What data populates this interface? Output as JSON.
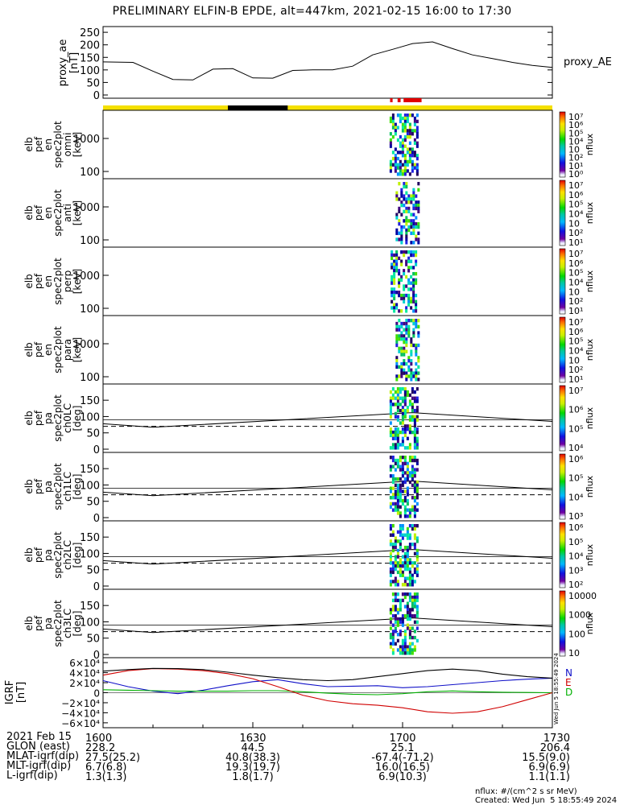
{
  "title": "PRELIMINARY ELFIN-B EPDE, alt=447km, 2021-02-15 16:00 to 17:30",
  "colors": {
    "ae_line": "#000000",
    "bar_yellow": "#f5e000",
    "bar_black": "#000000",
    "bar_red": "#e00000",
    "igrf_n": "#1010c8",
    "igrf_e": "#00b000",
    "igrf_d": "#d00000",
    "igrf_t": "#000000"
  },
  "chart_data": [
    {
      "panel": "proxy_ae",
      "type": "line",
      "ylabel": "proxy_ae [nT]",
      "yticks": [
        "250",
        "200",
        "150",
        "100",
        "50",
        "0"
      ],
      "ylim": [
        0,
        260
      ],
      "legend": "proxy_AE",
      "x_minutes": [
        0,
        6,
        10,
        14,
        18,
        22,
        26,
        30,
        34,
        38,
        42,
        46,
        50,
        54,
        58,
        62,
        66,
        70,
        74,
        78,
        82,
        86,
        90
      ],
      "values": [
        132,
        130,
        95,
        62,
        60,
        103,
        105,
        68,
        67,
        98,
        100,
        100,
        115,
        160,
        182,
        205,
        212,
        185,
        160,
        145,
        130,
        118,
        110
      ]
    },
    {
      "panel": "orbit_bar",
      "type": "bar",
      "segments": [
        {
          "start": 0,
          "end": 25,
          "color": "yellow"
        },
        {
          "start": 25,
          "end": 37,
          "color": "black"
        },
        {
          "start": 37,
          "end": 90,
          "color": "yellow"
        }
      ],
      "red_marks": [
        [
          57.5,
          58
        ],
        [
          59,
          59.6
        ],
        [
          60.2,
          63.8
        ]
      ]
    },
    {
      "panel": "elb_pef_en_spec2plot_omni",
      "type": "heatmap",
      "ylabel_lines": [
        "elb",
        "pef",
        "en",
        "spec2plot",
        "omni",
        "[keV]"
      ],
      "yticks": [
        "1000",
        "100"
      ],
      "colorbar_ticks": [
        "10⁷",
        "10⁶",
        "10⁵",
        "10⁴",
        "10⁳",
        "10²",
        "10¹",
        "10⁰"
      ],
      "colorbar_label": "nflux",
      "data_window": [
        57.4,
        63.6
      ]
    },
    {
      "panel": "elb_pef_en_spec2plot_anti",
      "type": "heatmap",
      "ylabel_lines": [
        "elb",
        "pef",
        "en",
        "spec2plot",
        "anti",
        "[keV]"
      ],
      "yticks": [
        "1000",
        "100"
      ],
      "colorbar_ticks": [
        "10⁷",
        "10⁶",
        "10⁵",
        "10⁴",
        "10⁳",
        "10²",
        "10¹"
      ],
      "colorbar_label": "nflux",
      "data_window": [
        58.6,
        63.6
      ]
    },
    {
      "panel": "elb_pef_en_spec2plot_perp",
      "type": "heatmap",
      "ylabel_lines": [
        "elb",
        "pef",
        "en",
        "spec2plot",
        "perp",
        "[keV]"
      ],
      "yticks": [
        "1000",
        "100"
      ],
      "colorbar_ticks": [
        "10⁷",
        "10⁶",
        "10⁵",
        "10⁴",
        "10⁳",
        "10²",
        "10¹"
      ],
      "colorbar_label": "nflux",
      "data_window": [
        57.6,
        63.4
      ]
    },
    {
      "panel": "elb_pef_en_spec2plot_para",
      "type": "heatmap",
      "ylabel_lines": [
        "elb",
        "pef",
        "en",
        "spec2plot",
        "para",
        "[keV]"
      ],
      "yticks": [
        "1000",
        "100"
      ],
      "colorbar_ticks": [
        "10⁷",
        "10⁶",
        "10⁵",
        "10⁴",
        "10⁳",
        "10²",
        "10¹"
      ],
      "colorbar_label": "nflux",
      "data_window": [
        58.6,
        63.6
      ]
    },
    {
      "panel": "elb_pef_pa_spec2plot_ch0LC",
      "type": "heatmap",
      "ylabel_lines": [
        "elb",
        "pef",
        "pa",
        "spec2plot",
        "ch0LC",
        "[deg]"
      ],
      "yticks": [
        "150",
        "100",
        "50",
        "0"
      ],
      "colorbar_ticks": [
        "10⁷",
        "10⁶",
        "10⁵",
        "10⁴"
      ],
      "colorbar_label": "nflux",
      "data_window": [
        57.4,
        63.6
      ]
    },
    {
      "panel": "elb_pef_pa_spec2plot_ch1LC",
      "type": "heatmap",
      "ylabel_lines": [
        "elb",
        "pef",
        "pa",
        "spec2plot",
        "ch1LC",
        "[deg]"
      ],
      "yticks": [
        "150",
        "100",
        "50",
        "0"
      ],
      "colorbar_ticks": [
        "10⁶",
        "10⁵",
        "10⁴",
        "10³"
      ],
      "colorbar_label": "nflux",
      "data_window": [
        57.4,
        63.6
      ]
    },
    {
      "panel": "elb_pef_pa_spec2plot_ch2LC",
      "type": "heatmap",
      "ylabel_lines": [
        "elb",
        "pef",
        "pa",
        "spec2plot",
        "ch2LC",
        "[deg]"
      ],
      "yticks": [
        "150",
        "100",
        "50",
        "0"
      ],
      "colorbar_ticks": [
        "10⁶",
        "10⁵",
        "10⁴",
        "10³",
        "10²"
      ],
      "colorbar_label": "nflux",
      "data_window": [
        57.4,
        63.6
      ]
    },
    {
      "panel": "elb_pef_pa_spec2plot_ch3LC",
      "type": "heatmap",
      "ylabel_lines": [
        "elb",
        "pef",
        "pa",
        "spec2plot",
        "ch3LC",
        "[deg]"
      ],
      "yticks": [
        "150",
        "100",
        "50",
        "0"
      ],
      "colorbar_ticks": [
        "10000",
        "1000",
        "100",
        "10"
      ],
      "colorbar_label": "nflux",
      "data_window": [
        57.4,
        63.6
      ]
    },
    {
      "panel": "IGRF",
      "type": "line",
      "ylabel": "IGRF [nT]",
      "yticks": [
        "6×10⁴",
        "4×10⁴",
        "2×10⁴",
        "0",
        "−2×10⁴",
        "−4×10⁴",
        "−6×10⁴"
      ],
      "ylim": [
        -65000,
        65000
      ],
      "legend": [
        "N",
        "E",
        "D"
      ],
      "x_minutes": [
        0,
        5,
        10,
        15,
        20,
        25,
        30,
        35,
        40,
        45,
        50,
        55,
        60,
        65,
        70,
        75,
        80,
        85,
        90
      ],
      "series": [
        {
          "name": "N",
          "color": "blue",
          "values": [
            24000,
            12000,
            3000,
            -2000,
            5000,
            14000,
            22000,
            26000,
            18000,
            12000,
            13000,
            14000,
            10000,
            12000,
            16000,
            20000,
            24000,
            27000,
            29000
          ]
        },
        {
          "name": "E",
          "color": "green",
          "values": [
            6000,
            5000,
            4000,
            3000,
            3000,
            3000,
            4000,
            4000,
            2000,
            -1000,
            -3000,
            -4000,
            -2000,
            2000,
            3500,
            2000,
            1000,
            500,
            0
          ]
        },
        {
          "name": "D",
          "color": "red",
          "values": [
            35000,
            44000,
            48000,
            47000,
            44000,
            38000,
            28000,
            12000,
            -5000,
            -16000,
            -22000,
            -25000,
            -30000,
            -38000,
            -41000,
            -38000,
            -28000,
            -14000,
            0
          ]
        },
        {
          "name": "",
          "color": "black",
          "values": [
            43000,
            46000,
            48500,
            48000,
            46000,
            41000,
            35000,
            30000,
            26000,
            24000,
            26000,
            32000,
            38000,
            44000,
            47000,
            44000,
            37000,
            32000,
            29000
          ]
        }
      ]
    }
  ],
  "pa_reference": {
    "solid_deg_start": 78,
    "solid_deg_min": 67,
    "solid_deg_peak": 112,
    "solid_deg_end": 85,
    "dashed_deg": 70
  },
  "xaxis": {
    "rows": [
      {
        "label": "2021 Feb 15",
        "values": [
          "1600",
          "1630",
          "1700",
          "1730"
        ]
      },
      {
        "label": "GLON (east)",
        "values": [
          "228.2",
          "44.5",
          "25.1",
          "206.4"
        ]
      },
      {
        "label": "MLAT-igrf(dip)",
        "values": [
          "27.5(25.2)",
          "40.8(38.3)",
          "-67.4(-71.2)",
          "15.5(9.0)"
        ]
      },
      {
        "label": "MLT-igrf(dip)",
        "values": [
          "6.7(6.8)",
          "19.3(19.7)",
          "16.0(16.5)",
          "6.9(6.9)"
        ]
      },
      {
        "label": "L-igrf(dip)",
        "values": [
          "1.3(1.3)",
          "1.8(1.7)",
          "6.9(10.3)",
          "1.1(1.1)"
        ]
      }
    ]
  },
  "footer": {
    "units": "nflux: #/(cm^2 s sr MeV)",
    "created": "Created: Wed Jun  5 18:55:49 2024",
    "stamp": "Wed Jun  5 18:55:49 2024"
  }
}
